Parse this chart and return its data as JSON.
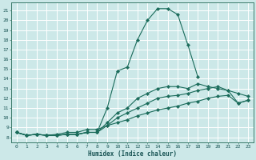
{
  "xlabel": "Humidex (Indice chaleur)",
  "ylabel": "",
  "bg_color": "#cce8e8",
  "grid_color": "#ffffff",
  "line_color": "#1a6b5a",
  "xlim": [
    -0.5,
    23.5
  ],
  "ylim": [
    7.5,
    21.8
  ],
  "xticks": [
    0,
    1,
    2,
    3,
    4,
    5,
    6,
    7,
    8,
    9,
    10,
    11,
    12,
    13,
    14,
    15,
    16,
    17,
    18,
    19,
    20,
    21,
    22,
    23
  ],
  "yticks": [
    8,
    9,
    10,
    11,
    12,
    13,
    14,
    15,
    16,
    17,
    18,
    19,
    20,
    21
  ],
  "lines": [
    {
      "x": [
        0,
        1,
        2,
        3,
        4,
        5,
        6,
        7,
        8,
        9,
        10,
        11,
        12,
        13,
        14,
        15,
        16,
        17,
        18
      ],
      "y": [
        8.5,
        8.2,
        8.3,
        8.2,
        8.2,
        8.3,
        8.3,
        8.5,
        8.5,
        11.0,
        14.8,
        15.2,
        18.0,
        20.0,
        21.2,
        21.2,
        20.6,
        17.5,
        14.2
      ]
    },
    {
      "x": [
        0,
        1,
        2,
        3,
        4,
        5,
        6,
        7,
        8,
        9,
        10,
        11,
        12,
        13,
        14,
        15,
        16,
        17,
        18,
        19,
        20,
        21,
        22,
        23
      ],
      "y": [
        8.5,
        8.2,
        8.3,
        8.2,
        8.2,
        8.3,
        8.3,
        8.5,
        8.5,
        9.5,
        10.5,
        11.0,
        12.0,
        12.5,
        13.0,
        13.2,
        13.2,
        13.0,
        13.5,
        13.2,
        13.0,
        12.8,
        12.5,
        12.2
      ]
    },
    {
      "x": [
        0,
        1,
        2,
        3,
        4,
        5,
        6,
        7,
        8,
        9,
        10,
        11,
        12,
        13,
        14,
        15,
        16,
        17,
        18,
        19,
        20,
        21,
        22,
        23
      ],
      "y": [
        8.5,
        8.2,
        8.3,
        8.2,
        8.2,
        8.3,
        8.3,
        8.5,
        8.5,
        9.2,
        10.0,
        10.5,
        11.0,
        11.5,
        12.0,
        12.2,
        12.3,
        12.5,
        12.8,
        13.0,
        13.2,
        12.8,
        11.5,
        11.8
      ]
    },
    {
      "x": [
        0,
        1,
        2,
        3,
        4,
        5,
        6,
        7,
        8,
        9,
        10,
        11,
        12,
        13,
        14,
        15,
        16,
        17,
        18,
        19,
        20,
        21,
        22,
        23
      ],
      "y": [
        8.5,
        8.2,
        8.3,
        8.2,
        8.3,
        8.5,
        8.5,
        8.8,
        8.8,
        9.2,
        9.5,
        9.8,
        10.2,
        10.5,
        10.8,
        11.0,
        11.2,
        11.5,
        11.7,
        12.0,
        12.2,
        12.3,
        11.5,
        11.8
      ]
    }
  ]
}
